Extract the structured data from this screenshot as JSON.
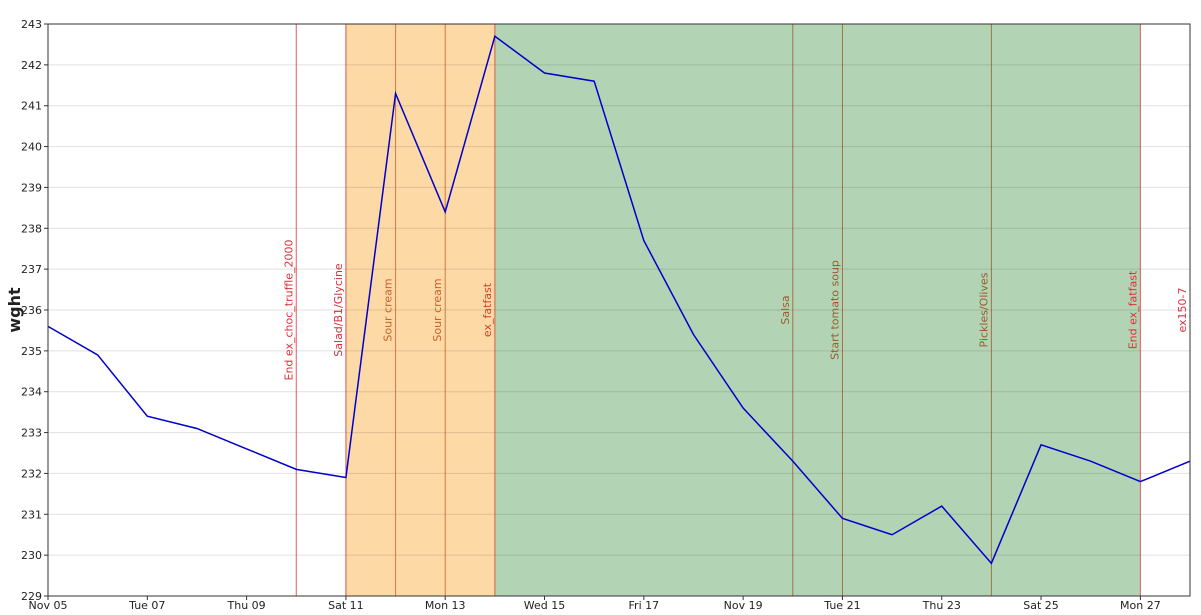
{
  "chart_data": {
    "type": "line",
    "ylabel": "wght",
    "x": [
      5,
      6,
      7,
      8,
      9,
      10,
      11,
      12,
      13,
      14,
      15,
      16,
      17,
      18,
      19,
      20,
      21,
      22,
      23,
      24,
      25,
      26,
      27,
      28
    ],
    "series": [
      {
        "color": "#0000cc",
        "values": [
          235.6,
          234.9,
          233.4,
          233.1,
          232.6,
          232.1,
          231.9,
          241.3,
          238.4,
          242.7,
          241.8,
          241.6,
          237.7,
          235.4,
          233.6,
          232.3,
          230.9,
          230.5,
          231.2,
          229.8,
          232.7,
          232.3,
          231.8,
          232.3
        ]
      }
    ],
    "xlim": [
      5,
      28
    ],
    "xticks": [
      {
        "value": 5,
        "label": "Nov 05"
      },
      {
        "value": 7,
        "label": "Tue 07"
      },
      {
        "value": 9,
        "label": "Thu 09"
      },
      {
        "value": 11,
        "label": "Sat 11"
      },
      {
        "value": 13,
        "label": "Mon 13"
      },
      {
        "value": 15,
        "label": "Wed 15"
      },
      {
        "value": 17,
        "label": "Fri 17"
      },
      {
        "value": 19,
        "label": "Nov 19"
      },
      {
        "value": 21,
        "label": "Tue 21"
      },
      {
        "value": 23,
        "label": "Thu 23"
      },
      {
        "value": 25,
        "label": "Sat 25"
      },
      {
        "value": 27,
        "label": "Mon 27"
      }
    ],
    "ylim": [
      229,
      243
    ],
    "yticks": [
      229,
      230,
      231,
      232,
      233,
      234,
      235,
      236,
      237,
      238,
      239,
      240,
      241,
      242,
      243
    ],
    "grid": true,
    "spans": [
      {
        "start": 11,
        "end": 14,
        "color": "#fdd9a6"
      },
      {
        "start": 14,
        "end": 27,
        "color": "#b3d4b4"
      }
    ],
    "annotations": [
      {
        "x": 10,
        "label": "End ex_choc_truffle_2000",
        "color": "#e0303a"
      },
      {
        "x": 11,
        "label": "Salad/B1/Glycine",
        "color": "#d0303a"
      },
      {
        "x": 12,
        "label": "Sour cream",
        "color": "#c8602a"
      },
      {
        "x": 13,
        "label": "Sour cream",
        "color": "#c8602a"
      },
      {
        "x": 14,
        "label": "ex_fatfast",
        "color": "#d04030"
      },
      {
        "x": 20,
        "label": "Salsa",
        "color": "#9a5a2a"
      },
      {
        "x": 21,
        "label": "Start tomato soup",
        "color": "#9a5a2a"
      },
      {
        "x": 24,
        "label": "Pickles/Olives",
        "color": "#9a5a2a"
      },
      {
        "x": 27,
        "label": "End ex_fatfast",
        "color": "#e0303a"
      },
      {
        "x": 28,
        "label": "ex150-7",
        "color": "#e0303a"
      }
    ]
  }
}
